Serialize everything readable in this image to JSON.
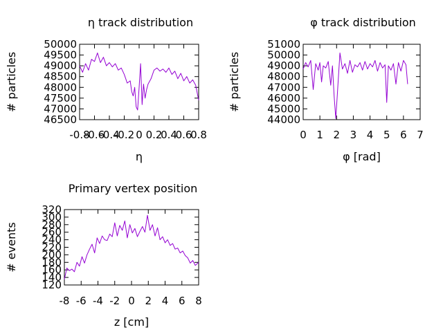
{
  "chart_data": [
    {
      "type": "line",
      "title": "η track distribution",
      "xlabel": "η",
      "ylabel": "# particles",
      "xlim": [
        -0.8,
        0.8
      ],
      "ylim": [
        46500,
        50000
      ],
      "x_ticks": [
        "-0.8",
        "-0.6",
        "-0.4",
        "-0.2",
        "0",
        "0.2",
        "0.4",
        "0.6",
        "0.8"
      ],
      "y_ticks": [
        "46500",
        "47000",
        "47500",
        "48000",
        "48500",
        "49000",
        "49500",
        "50000"
      ],
      "grid": false,
      "series": [
        {
          "color": "#9400d3",
          "x": [
            -0.8,
            -0.76,
            -0.72,
            -0.68,
            -0.64,
            -0.6,
            -0.56,
            -0.52,
            -0.48,
            -0.44,
            -0.4,
            -0.36,
            -0.32,
            -0.28,
            -0.24,
            -0.2,
            -0.16,
            -0.12,
            -0.1,
            -0.08,
            -0.06,
            -0.04,
            -0.02,
            0.0,
            0.02,
            0.04,
            0.06,
            0.08,
            0.1,
            0.12,
            0.16,
            0.2,
            0.24,
            0.28,
            0.32,
            0.36,
            0.4,
            0.44,
            0.48,
            0.52,
            0.56,
            0.6,
            0.64,
            0.68,
            0.72,
            0.76,
            0.8
          ],
          "y": [
            49000,
            48700,
            49100,
            48800,
            49300,
            49200,
            49600,
            49150,
            49400,
            49000,
            49150,
            48950,
            49100,
            48800,
            48900,
            48600,
            48200,
            48300,
            47800,
            47600,
            48000,
            47100,
            46950,
            48000,
            49100,
            47200,
            48150,
            47500,
            47900,
            48150,
            48400,
            48800,
            48900,
            48750,
            48850,
            48700,
            48900,
            48600,
            48750,
            48400,
            48650,
            48300,
            48500,
            48200,
            48350,
            48100,
            47400
          ]
        }
      ]
    },
    {
      "type": "line",
      "title": "φ track distribution",
      "xlabel": "φ [rad]",
      "ylabel": "# particles",
      "xlim": [
        0,
        7
      ],
      "ylim": [
        44000,
        51000
      ],
      "x_ticks": [
        "0",
        "1",
        "2",
        "3",
        "4",
        "5",
        "6",
        "7"
      ],
      "y_ticks": [
        "44000",
        "45000",
        "46000",
        "47000",
        "48000",
        "49000",
        "50000",
        "51000"
      ],
      "grid": false,
      "series": [
        {
          "color": "#9400d3",
          "x": [
            0.0,
            0.15,
            0.3,
            0.45,
            0.6,
            0.75,
            0.9,
            1.0,
            1.1,
            1.2,
            1.35,
            1.5,
            1.65,
            1.75,
            1.85,
            1.95,
            2.05,
            2.2,
            2.35,
            2.5,
            2.65,
            2.8,
            2.95,
            3.1,
            3.25,
            3.4,
            3.55,
            3.7,
            3.85,
            4.0,
            4.15,
            4.3,
            4.45,
            4.6,
            4.75,
            4.9,
            5.0,
            5.1,
            5.25,
            5.4,
            5.55,
            5.7,
            5.85,
            6.0,
            6.15,
            6.25
          ],
          "y": [
            48700,
            49300,
            48900,
            49500,
            46800,
            49200,
            48600,
            49300,
            47500,
            49000,
            48800,
            49400,
            47200,
            49000,
            46200,
            44100,
            46500,
            50200,
            48700,
            49200,
            48300,
            49500,
            48400,
            49100,
            48900,
            49300,
            48600,
            49400,
            48700,
            49200,
            48900,
            49500,
            48500,
            49300,
            48800,
            49100,
            45600,
            49000,
            48600,
            49200,
            47300,
            49300,
            48500,
            49500,
            49100,
            47300
          ]
        }
      ]
    },
    {
      "type": "line",
      "title": "Primary vertex position",
      "xlabel": "z [cm]",
      "ylabel": "# events",
      "xlim": [
        -8,
        8
      ],
      "ylim": [
        120,
        320
      ],
      "x_ticks": [
        "-8",
        "-6",
        "-4",
        "-2",
        "0",
        "2",
        "4",
        "6",
        "8"
      ],
      "y_ticks": [
        "120",
        "140",
        "160",
        "180",
        "200",
        "220",
        "240",
        "260",
        "280",
        "300",
        "320"
      ],
      "grid": false,
      "series": [
        {
          "color": "#9400d3",
          "x": [
            -8.0,
            -7.7,
            -7.4,
            -7.1,
            -6.8,
            -6.5,
            -6.2,
            -5.9,
            -5.6,
            -5.3,
            -5.0,
            -4.7,
            -4.4,
            -4.1,
            -3.8,
            -3.5,
            -3.2,
            -2.9,
            -2.6,
            -2.3,
            -2.0,
            -1.7,
            -1.4,
            -1.1,
            -0.8,
            -0.5,
            -0.2,
            0.1,
            0.4,
            0.7,
            1.0,
            1.3,
            1.6,
            1.9,
            2.2,
            2.5,
            2.8,
            3.1,
            3.4,
            3.7,
            4.0,
            4.3,
            4.6,
            4.9,
            5.2,
            5.5,
            5.8,
            6.1,
            6.4,
            6.7,
            7.0,
            7.3,
            7.6,
            8.0
          ],
          "y": [
            135,
            165,
            158,
            162,
            155,
            180,
            170,
            195,
            178,
            200,
            215,
            228,
            205,
            245,
            230,
            250,
            240,
            238,
            255,
            248,
            285,
            250,
            278,
            265,
            290,
            245,
            280,
            258,
            270,
            248,
            262,
            275,
            260,
            305,
            265,
            280,
            250,
            272,
            240,
            248,
            232,
            240,
            225,
            230,
            215,
            218,
            205,
            210,
            198,
            192,
            178,
            185,
            172,
            180
          ]
        }
      ]
    }
  ]
}
